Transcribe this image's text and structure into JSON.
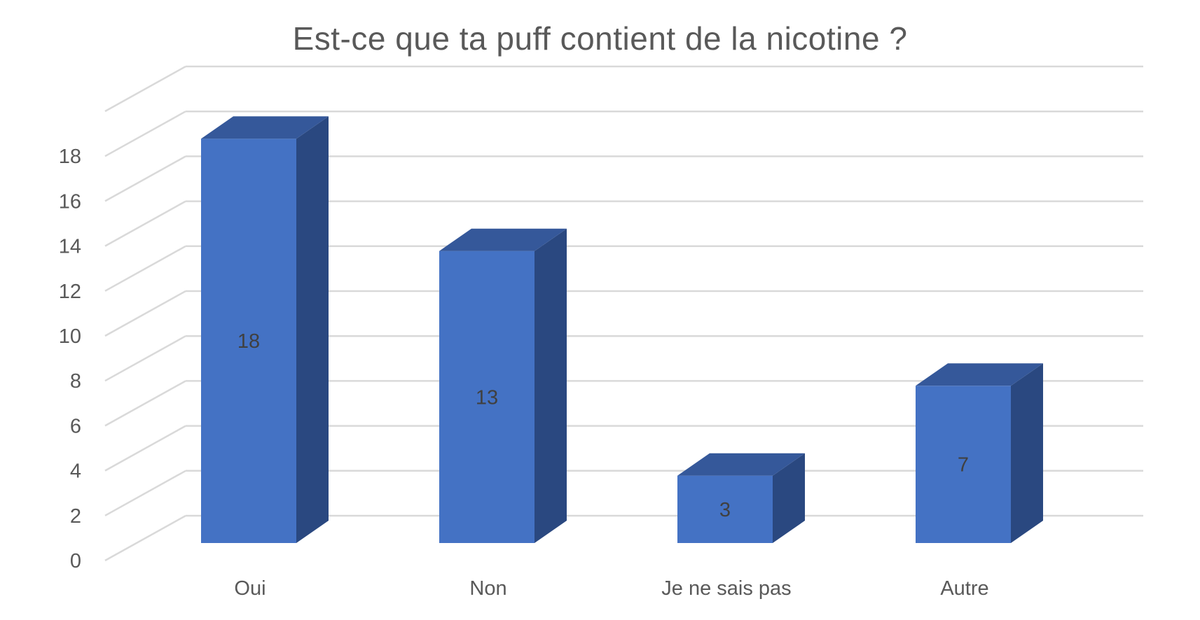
{
  "chart_data": {
    "type": "bar",
    "title": "Est-ce que ta puff contient de la nicotine ?",
    "categories": [
      "Oui",
      "Non",
      "Je ne sais pas",
      "Autre"
    ],
    "values": [
      18,
      13,
      3,
      7
    ],
    "data_labels": [
      "18",
      "13",
      "3",
      "7"
    ],
    "ylim": [
      0,
      20
    ],
    "y_ticks": [
      0,
      2,
      4,
      6,
      8,
      10,
      12,
      14,
      16,
      18
    ],
    "grid": true,
    "style": "3d-column",
    "colors": {
      "bar_front": "#4472C4",
      "bar_side": "#2A4880",
      "bar_top": "#35589A",
      "grid": "#D9D9D9",
      "text": "#595959",
      "label": "#404040"
    }
  }
}
